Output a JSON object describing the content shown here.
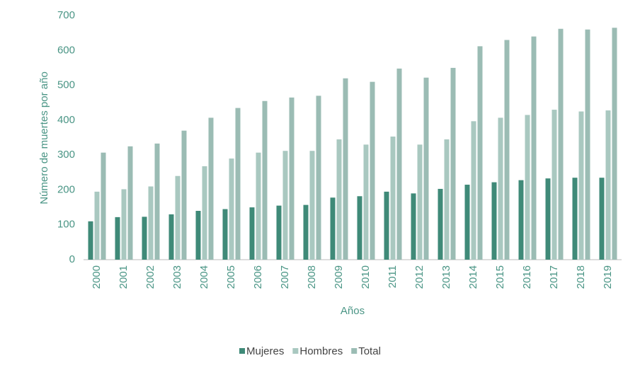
{
  "chart_data": {
    "type": "bar",
    "y_label": "Número de muertes por año",
    "x_label": "Años",
    "categories": [
      "2000",
      "2001",
      "2002",
      "2003",
      "2004",
      "2005",
      "2006",
      "2007",
      "2008",
      "2009",
      "2010",
      "2011",
      "2012",
      "2013",
      "2014",
      "2015",
      "2016",
      "2017",
      "2018",
      "2019"
    ],
    "series": [
      {
        "name": "Mujeres",
        "color": "#3f8a78",
        "values": [
          110,
          122,
          123,
          130,
          140,
          145,
          150,
          155,
          157,
          178,
          182,
          195,
          190,
          203,
          215,
          222,
          228,
          233,
          235,
          235
        ]
      },
      {
        "name": "Hombres",
        "color": "#a9c8c0",
        "values": [
          195,
          202,
          210,
          240,
          268,
          290,
          307,
          312,
          312,
          345,
          330,
          353,
          330,
          345,
          397,
          407,
          415,
          430,
          425,
          428
        ]
      },
      {
        "name": "Total",
        "color": "#9bbcb4",
        "values": [
          307,
          325,
          333,
          370,
          407,
          435,
          455,
          465,
          470,
          520,
          510,
          548,
          522,
          550,
          612,
          630,
          640,
          662,
          660,
          665
        ]
      }
    ],
    "ylim": [
      0,
      700
    ],
    "yticks": [
      0,
      100,
      200,
      300,
      400,
      500,
      600,
      700
    ]
  }
}
